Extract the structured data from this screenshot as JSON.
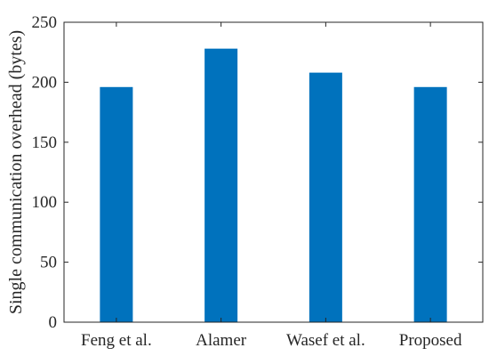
{
  "chart_data": {
    "type": "bar",
    "categories": [
      "Feng et al.",
      "Alamer",
      "Wasef et al.",
      "Proposed"
    ],
    "values": [
      196,
      228,
      208,
      196
    ],
    "title": "",
    "xlabel": "",
    "ylabel": "Single communication overhead (bytes)",
    "ylim": [
      0,
      250
    ],
    "yticks": [
      0,
      50,
      100,
      150,
      200,
      250
    ],
    "xlim": [
      0.5,
      4.5
    ],
    "bar_color": "#0072BD",
    "grid": false,
    "legend": "none"
  }
}
